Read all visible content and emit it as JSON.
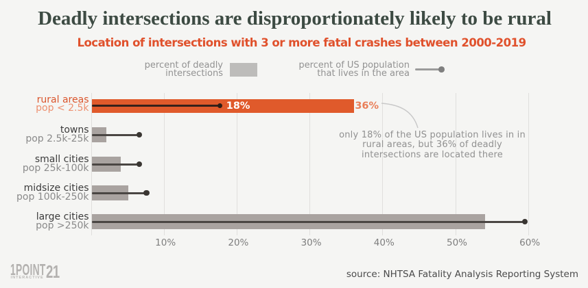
{
  "header": {
    "title": "Deadly intersections are disproportionately likely to be rural",
    "subtitle": "Location of intersections with 3 or more fatal crashes between 2000-2019"
  },
  "legend": {
    "bar": {
      "lines": [
        "percent of deadly",
        "intersections"
      ]
    },
    "dot": {
      "lines": [
        "percent of US population",
        "that lives in the area"
      ]
    }
  },
  "chart_data": {
    "type": "bar",
    "orientation": "horizontal",
    "categories": [
      "rural areas",
      "towns",
      "small cities",
      "midsize cities",
      "large cities"
    ],
    "category_sublabels": [
      "pop < 2.5k",
      "pop 2.5k-25k",
      "pop 25k-100k",
      "pop 100k-250k",
      "pop >250k"
    ],
    "series": [
      {
        "name": "percent of deadly intersections",
        "values": [
          36,
          2,
          4,
          5,
          54
        ]
      },
      {
        "name": "percent of US population that lives in the area",
        "values": [
          18,
          6.6,
          6.6,
          7.6,
          59.5
        ]
      }
    ],
    "highlight_index": 0,
    "callouts": {
      "row": 0,
      "bar_label": "36%",
      "dot_label": "18%"
    },
    "xticks": [
      "10%",
      "20%",
      "30%",
      "40%",
      "50%",
      "60%"
    ],
    "xlim": [
      0,
      60
    ],
    "grid": true,
    "legend_position": "top"
  },
  "annotation": {
    "lines": [
      "only 18% of the US population lives in in",
      "rural areas, but 36% of deadly",
      "intersections are located there"
    ]
  },
  "footer": {
    "logo_word": "1POINT",
    "logo_num": "21",
    "logo_sub": "INTERACTIVE",
    "source": "source: NHTSA Fatality Analysis Reporting System"
  },
  "colors": {
    "background": "#f5f5f3",
    "title": "#3d4b43",
    "subtitle": "#e0512c",
    "highlight_bar": "#e05a2b",
    "bar": "#a9a3a0",
    "legend_swatch": "#bdbcba",
    "pop_line": "#4a4643",
    "pop_dot": "#3a3632",
    "highlight_pop_line": "#36211a",
    "highlight_pop_dot": "#2f1d15",
    "bar_label": "#e97e58",
    "dot_label": "#ffffff",
    "gridline": "#e0dfdd"
  }
}
